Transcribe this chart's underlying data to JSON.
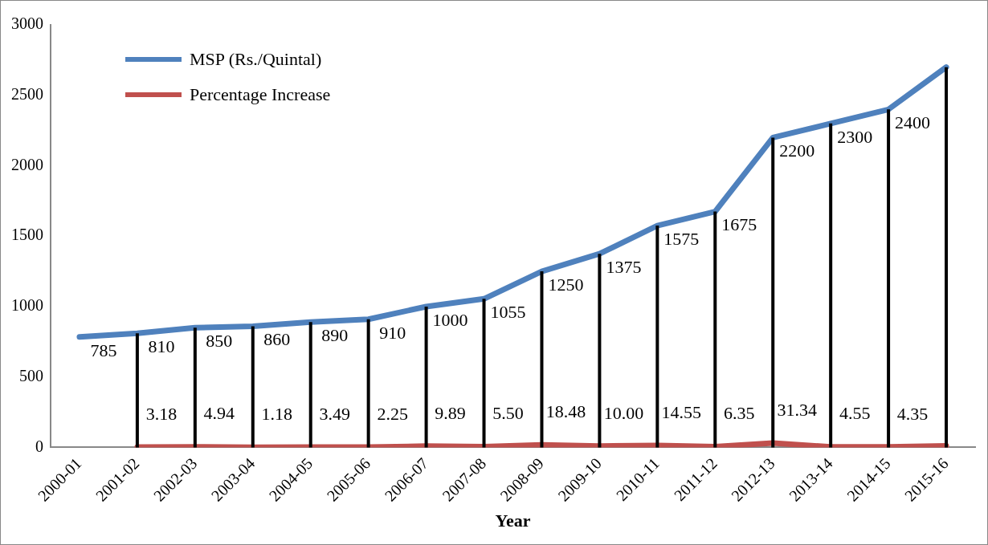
{
  "chart_data": {
    "type": "line",
    "xlabel": "Year",
    "categories": [
      "2000-01",
      "2001-02",
      "2002-03",
      "2003-04",
      "2004-05",
      "2005-06",
      "2006-07",
      "2007-08",
      "2008-09",
      "2009-10",
      "2010-11",
      "2011-12",
      "2012-13",
      "2013-14",
      "2014-15",
      "2015-16"
    ],
    "series": [
      {
        "name": "MSP (Rs./Quintal)",
        "color": "#4f81bd",
        "values": [
          785,
          810,
          850,
          860,
          890,
          910,
          1000,
          1055,
          1250,
          1375,
          1575,
          1675,
          2200,
          2300,
          2400,
          2700
        ],
        "value_labels": [
          "785",
          "810",
          "850",
          "860",
          "890",
          "910",
          "1000",
          "1055",
          "1250",
          "1375",
          "1575",
          "1675",
          "2200",
          "2300",
          "2400",
          null
        ],
        "errors": [
          null,
          [
            810,
            0
          ],
          [
            850,
            0
          ],
          [
            860,
            0
          ],
          [
            890,
            0
          ],
          [
            910,
            0
          ],
          [
            1000,
            0
          ],
          [
            1055,
            0
          ],
          [
            1250,
            0
          ],
          [
            1375,
            0
          ],
          [
            1575,
            0
          ],
          [
            1675,
            0
          ],
          [
            2200,
            0
          ],
          [
            2300,
            0
          ],
          [
            2400,
            0
          ],
          [
            2700,
            0
          ]
        ]
      },
      {
        "name": "Percentage Increase",
        "color": "#c0504d",
        "values": [
          null,
          3.18,
          4.94,
          1.18,
          3.49,
          2.25,
          9.89,
          5.5,
          18.48,
          10.0,
          14.55,
          6.35,
          31.34,
          4.55,
          4.35,
          12
        ],
        "value_labels": [
          null,
          "3.18",
          "4.94",
          "1.18",
          "3.49",
          "2.25",
          "9.89",
          "5.50",
          "18.48",
          "10.00",
          "14.55",
          "6.35",
          "31.34",
          "4.55",
          "4.35",
          null
        ]
      }
    ],
    "ylim": [
      0,
      3000
    ],
    "yticks": [
      0,
      500,
      1000,
      1500,
      2000,
      2500,
      3000
    ],
    "grid": false,
    "legend": "top left",
    "marker": "none",
    "line_style": "solid"
  }
}
